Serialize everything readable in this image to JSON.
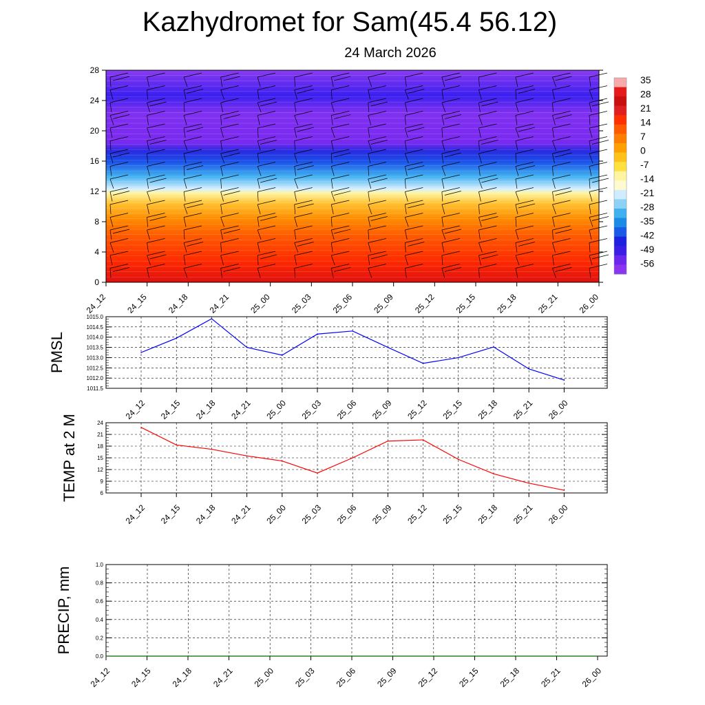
{
  "title": "Kazhydromet for Sam(45.4 56.12)",
  "subtitle": "24 March 2026",
  "chart_data": [
    {
      "type": "heatmap",
      "name": "temperature-cross-section",
      "ylim": [
        0,
        28
      ],
      "yticks": [
        "0",
        "4",
        "8",
        "12",
        "16",
        "20",
        "24",
        "28"
      ],
      "xticks": [
        "24_12",
        "24_15",
        "24_18",
        "24_21",
        "25_00",
        "25_03",
        "25_06",
        "25_09",
        "25_12",
        "25_15",
        "25_18",
        "25_21",
        "26_00"
      ],
      "colorbar": {
        "labels": [
          "35",
          "28",
          "21",
          "14",
          "7",
          "0",
          "-7",
          "-14",
          "-21",
          "-28",
          "-35",
          "-42",
          "-49",
          "-56"
        ]
      },
      "overlay": "wind barbs"
    },
    {
      "type": "line",
      "name": "pmsl",
      "ylabel": "PMSL",
      "ylim": [
        1011.5,
        1015.0
      ],
      "yticks": [
        "1011.5",
        "1012.0",
        "1012.5",
        "1013.0",
        "1013.5",
        "1014.0",
        "1014.5",
        "1015.0"
      ],
      "categories": [
        "24_12",
        "24_15",
        "24_18",
        "24_21",
        "25_00",
        "25_03",
        "25_06",
        "25_09",
        "25_12",
        "25_15",
        "25_18",
        "25_21",
        "26_00"
      ],
      "series": [
        {
          "name": "PMSL",
          "color": "#0000ff",
          "values": [
            1013.25,
            1013.95,
            1014.9,
            1013.5,
            1013.12,
            1014.15,
            1014.3,
            1013.5,
            1012.72,
            1013.0,
            1013.52,
            1012.45,
            1011.9
          ]
        }
      ]
    },
    {
      "type": "line",
      "name": "temp-2m",
      "ylabel": "TEMP at 2 M",
      "ylim": [
        6,
        24
      ],
      "yticks": [
        "6",
        "9",
        "12",
        "15",
        "18",
        "21",
        "24"
      ],
      "categories": [
        "24_12",
        "24_15",
        "24_18",
        "24_21",
        "25_00",
        "25_03",
        "25_06",
        "25_09",
        "25_12",
        "25_15",
        "25_18",
        "25_21",
        "26_00"
      ],
      "series": [
        {
          "name": "TEMP at 2 M",
          "color": "#ff0000",
          "values": [
            22.8,
            18.3,
            17.2,
            15.5,
            14.2,
            11.1,
            15.0,
            19.3,
            19.6,
            14.6,
            10.9,
            8.5,
            6.7
          ]
        }
      ]
    },
    {
      "type": "line",
      "name": "precip",
      "ylabel": "PRECIP, mm",
      "ylim": [
        0.0,
        1.0
      ],
      "yticks": [
        "0.0",
        "0.2",
        "0.4",
        "0.6",
        "0.8",
        "1.0"
      ],
      "categories": [
        "24_12",
        "24_15",
        "24_18",
        "24_21",
        "25_00",
        "25_03",
        "25_06",
        "25_09",
        "25_12",
        "25_15",
        "25_18",
        "25_21",
        "26_00"
      ],
      "series": [
        {
          "name": "PRECIP",
          "color": "#006400",
          "values": [
            0,
            0,
            0,
            0,
            0,
            0,
            0,
            0,
            0,
            0,
            0,
            0,
            0
          ]
        }
      ]
    }
  ]
}
